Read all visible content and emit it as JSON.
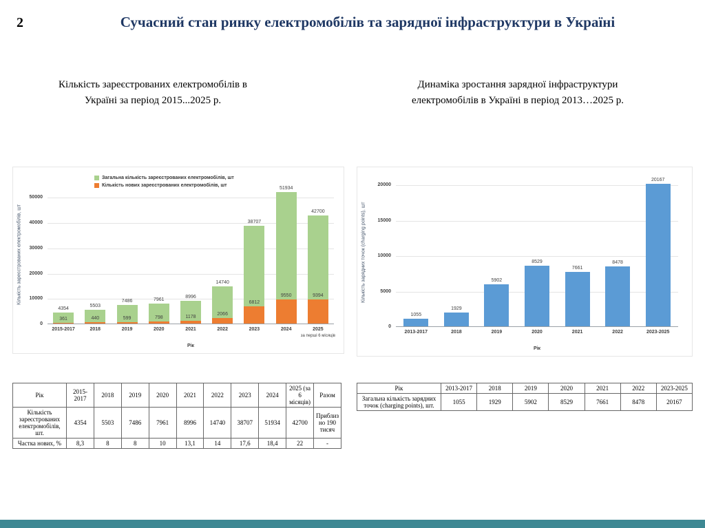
{
  "slide": {
    "number": "2",
    "title": "Сучасний стан ринку електромобілів та зарядної інфраструктури в Україні"
  },
  "colors": {
    "title": "#1f3864",
    "footer_strip": "#3e8893",
    "ev_total_bar": "#a9d18e",
    "ev_new_bar": "#ed7d31",
    "charging_bar": "#5b9bd5"
  },
  "left": {
    "subtitle": "Кількість зареєстрованих електромобілів в Україні за період 2015...2025 р.",
    "table": {
      "headers": [
        "Рік",
        "2015-2017",
        "2018",
        "2019",
        "2020",
        "2021",
        "2022",
        "2023",
        "2024",
        "2025 (за 6 місяців)",
        "Разом"
      ],
      "rows": [
        [
          "Кількість зареєстрованих електромобілів, шт.",
          "4354",
          "5503",
          "7486",
          "7961",
          "8996",
          "14740",
          "38707",
          "51934",
          "42700",
          "Приблизно 190 тисяч"
        ],
        [
          "Частка нових, %",
          "8,3",
          "8",
          "8",
          "10",
          "13,1",
          "14",
          "17,6",
          "18,4",
          "22",
          "-"
        ]
      ]
    }
  },
  "right": {
    "subtitle": "Динаміка зростання зарядної інфраструктури електромобілів в Україні в період 2013…2025 р.",
    "table": {
      "headers": [
        "Рік",
        "2013-2017",
        "2018",
        "2019",
        "2020",
        "2021",
        "2022",
        "2023-2025"
      ],
      "rows": [
        [
          "Загальна кількість зарядних точок (charging points), шт.",
          "1055",
          "1929",
          "5902",
          "8529",
          "7661",
          "8478",
          "20167"
        ]
      ]
    }
  },
  "chart_data": [
    {
      "type": "bar",
      "title": "Кількість зареєстрованих електромобілів в Україні за період 2015...2025 р.",
      "categories": [
        "2015-2017",
        "2018",
        "2019",
        "2020",
        "2021",
        "2022",
        "2023",
        "2024",
        "2025"
      ],
      "notes": {
        "8": "за перші 6 місяців"
      },
      "series": [
        {
          "name": "Загальна кількість зареєстрованих електромобілів, шт",
          "color": "#a9d18e",
          "values": [
            4354,
            5503,
            7486,
            7961,
            8996,
            14740,
            38707,
            51934,
            42700
          ]
        },
        {
          "name": "Кількість нових зареєстрованих електромобілів, шт",
          "color": "#ed7d31",
          "values": [
            361,
            440,
            599,
            798,
            1178,
            2066,
            6812,
            9550,
            9394
          ]
        }
      ],
      "xlabel": "Рік",
      "ylabel": "Кількість зареєстрованих електромобілів, шт",
      "ylim": [
        0,
        55000
      ],
      "yticks": [
        0,
        10000,
        20000,
        30000,
        40000,
        50000
      ],
      "grid": true,
      "legend_position": "top-left"
    },
    {
      "type": "bar",
      "title": "Динаміка зростання зарядної інфраструктури електромобілів в Україні в період 2013…2025 р.",
      "categories": [
        "2013-2017",
        "2018",
        "2019",
        "2020",
        "2021",
        "2022",
        "2023-2025"
      ],
      "series": [
        {
          "name": "Кількість зарядних точок (charging points), шт",
          "color": "#5b9bd5",
          "values": [
            1055,
            1929,
            5902,
            8529,
            7661,
            8478,
            20167
          ]
        }
      ],
      "xlabel": "Рік",
      "ylabel": "Кількість зарядних точок (charging points), шт",
      "ylim": [
        0,
        21000
      ],
      "yticks": [
        0,
        5000,
        10000,
        15000,
        20000
      ],
      "grid": true,
      "legend_position": null
    }
  ]
}
